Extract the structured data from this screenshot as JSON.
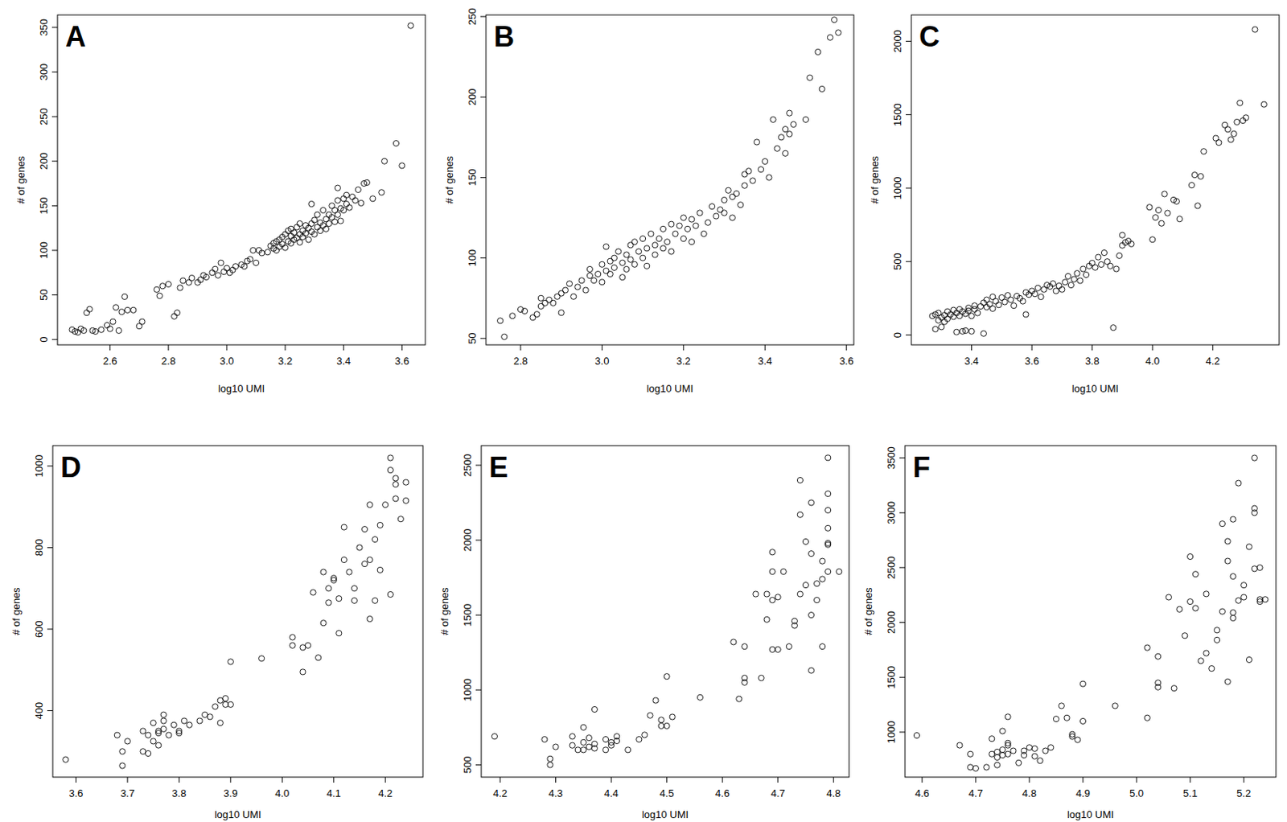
{
  "chart_data": [
    {
      "type": "scatter",
      "title": "A",
      "x_label": "log10 UMI",
      "y_label": "# of genes",
      "marker": "circle",
      "xlim": [
        2.42,
        3.68
      ],
      "ylim": [
        -6,
        364
      ],
      "xticks": [
        2.6,
        2.8,
        3.0,
        3.2,
        3.4,
        3.6
      ],
      "yticks": [
        0,
        50,
        100,
        150,
        200,
        250,
        300,
        350
      ],
      "x": [
        2.47,
        2.48,
        2.49,
        2.5,
        2.51,
        2.52,
        2.53,
        2.54,
        2.55,
        2.57,
        2.59,
        2.6,
        2.61,
        2.62,
        2.63,
        2.64,
        2.65,
        2.66,
        2.68,
        2.7,
        2.71,
        2.76,
        2.77,
        2.78,
        2.8,
        2.82,
        2.83,
        2.84,
        2.85,
        2.87,
        2.88,
        2.9,
        2.91,
        2.92,
        2.93,
        2.95,
        2.96,
        2.97,
        2.98,
        2.99,
        3.0,
        3.01,
        3.02,
        3.03,
        3.05,
        3.06,
        3.07,
        3.08,
        3.09,
        3.1,
        3.11,
        3.12,
        3.14,
        3.15,
        3.16,
        3.16,
        3.17,
        3.17,
        3.18,
        3.18,
        3.19,
        3.19,
        3.2,
        3.2,
        3.21,
        3.21,
        3.22,
        3.22,
        3.22,
        3.23,
        3.23,
        3.24,
        3.24,
        3.25,
        3.25,
        3.25,
        3.26,
        3.26,
        3.27,
        3.27,
        3.28,
        3.28,
        3.29,
        3.29,
        3.3,
        3.3,
        3.31,
        3.31,
        3.32,
        3.32,
        3.33,
        3.33,
        3.34,
        3.34,
        3.35,
        3.35,
        3.36,
        3.36,
        3.37,
        3.37,
        3.38,
        3.38,
        3.39,
        3.39,
        3.4,
        3.4,
        3.41,
        3.41,
        3.42,
        3.43,
        3.44,
        3.45,
        3.46,
        3.47,
        3.48,
        3.5,
        3.53,
        3.54,
        3.58,
        3.6,
        3.63,
        3.29,
        3.38
      ],
      "values": [
        11,
        9,
        8,
        12,
        10,
        30,
        34,
        10,
        9,
        11,
        16,
        12,
        20,
        36,
        10,
        31,
        48,
        33,
        33,
        15,
        20,
        56,
        49,
        60,
        62,
        26,
        30,
        58,
        66,
        64,
        69,
        64,
        67,
        72,
        70,
        75,
        79,
        72,
        86,
        76,
        80,
        75,
        78,
        82,
        84,
        82,
        88,
        90,
        100,
        86,
        100,
        97,
        98,
        105,
        102,
        108,
        100,
        110,
        104,
        112,
        107,
        115,
        103,
        118,
        110,
        122,
        108,
        116,
        124,
        112,
        120,
        114,
        126,
        109,
        118,
        130,
        122,
        115,
        128,
        119,
        125,
        112,
        130,
        121,
        118,
        134,
        126,
        140,
        122,
        131,
        128,
        145,
        135,
        124,
        140,
        130,
        150,
        137,
        132,
        145,
        140,
        156,
        147,
        133,
        158,
        145,
        152,
        162,
        148,
        160,
        156,
        168,
        153,
        175,
        176,
        158,
        165,
        200,
        220,
        195,
        352,
        152,
        170
      ]
    },
    {
      "type": "scatter",
      "title": "B",
      "x_label": "log10 UMI",
      "y_label": "# of genes",
      "marker": "circle",
      "xlim": [
        2.715,
        3.618
      ],
      "ylim": [
        46,
        251
      ],
      "xticks": [
        2.8,
        3.0,
        3.2,
        3.4,
        3.6
      ],
      "yticks": [
        50,
        100,
        150,
        200,
        250
      ],
      "x": [
        2.75,
        2.76,
        2.78,
        2.8,
        2.81,
        2.83,
        2.84,
        2.85,
        2.85,
        2.86,
        2.87,
        2.88,
        2.89,
        2.9,
        2.9,
        2.91,
        2.92,
        2.93,
        2.94,
        2.95,
        2.96,
        2.97,
        2.97,
        2.98,
        2.99,
        3.0,
        3.0,
        3.01,
        3.01,
        3.02,
        3.02,
        3.03,
        3.03,
        3.04,
        3.05,
        3.05,
        3.06,
        3.06,
        3.07,
        3.07,
        3.08,
        3.08,
        3.09,
        3.1,
        3.1,
        3.11,
        3.11,
        3.12,
        3.13,
        3.13,
        3.14,
        3.15,
        3.15,
        3.16,
        3.17,
        3.17,
        3.18,
        3.19,
        3.2,
        3.2,
        3.21,
        3.22,
        3.22,
        3.23,
        3.24,
        3.25,
        3.26,
        3.27,
        3.28,
        3.29,
        3.3,
        3.3,
        3.31,
        3.32,
        3.32,
        3.33,
        3.34,
        3.35,
        3.35,
        3.36,
        3.37,
        3.38,
        3.39,
        3.4,
        3.41,
        3.42,
        3.43,
        3.44,
        3.45,
        3.45,
        3.46,
        3.46,
        3.47,
        3.5,
        3.51,
        3.53,
        3.54,
        3.56,
        3.57,
        3.58
      ],
      "values": [
        61,
        51,
        64,
        68,
        67,
        63,
        65,
        75,
        70,
        72,
        74,
        72,
        76,
        66,
        78,
        80,
        84,
        76,
        82,
        86,
        80,
        89,
        93,
        86,
        90,
        85,
        96,
        92,
        107,
        98,
        90,
        100,
        94,
        104,
        97,
        88,
        102,
        93,
        108,
        99,
        96,
        110,
        104,
        100,
        112,
        106,
        95,
        115,
        108,
        102,
        112,
        106,
        118,
        110,
        104,
        121,
        115,
        120,
        112,
        125,
        118,
        110,
        124,
        120,
        128,
        115,
        122,
        132,
        126,
        130,
        136,
        128,
        142,
        125,
        138,
        140,
        133,
        152,
        145,
        154,
        148,
        172,
        155,
        160,
        150,
        186,
        168,
        175,
        165,
        180,
        177,
        190,
        183,
        186,
        212,
        228,
        205,
        237,
        248,
        240
      ]
    },
    {
      "type": "scatter",
      "title": "C",
      "x_label": "log10 UMI",
      "y_label": "# of genes",
      "marker": "circle",
      "xlim": [
        3.2,
        4.42
      ],
      "ylim": [
        -67,
        2179
      ],
      "xticks": [
        3.4,
        3.6,
        3.8,
        4.0,
        4.2
      ],
      "yticks": [
        0,
        500,
        1000,
        1500,
        2000
      ],
      "x": [
        3.27,
        3.28,
        3.28,
        3.29,
        3.29,
        3.3,
        3.3,
        3.31,
        3.31,
        3.32,
        3.32,
        3.33,
        3.34,
        3.34,
        3.35,
        3.35,
        3.36,
        3.36,
        3.37,
        3.37,
        3.38,
        3.38,
        3.39,
        3.39,
        3.4,
        3.4,
        3.41,
        3.41,
        3.42,
        3.43,
        3.44,
        3.44,
        3.45,
        3.45,
        3.46,
        3.47,
        3.47,
        3.48,
        3.49,
        3.5,
        3.51,
        3.52,
        3.53,
        3.54,
        3.55,
        3.56,
        3.57,
        3.58,
        3.58,
        3.59,
        3.6,
        3.61,
        3.62,
        3.63,
        3.64,
        3.65,
        3.66,
        3.67,
        3.68,
        3.69,
        3.7,
        3.71,
        3.72,
        3.73,
        3.74,
        3.75,
        3.76,
        3.77,
        3.78,
        3.79,
        3.8,
        3.81,
        3.82,
        3.83,
        3.84,
        3.85,
        3.86,
        3.87,
        3.88,
        3.89,
        3.9,
        3.9,
        3.91,
        3.92,
        3.93,
        3.99,
        4.0,
        4.01,
        4.02,
        4.03,
        4.04,
        4.05,
        4.07,
        4.08,
        4.09,
        4.13,
        4.14,
        4.15,
        4.16,
        4.17,
        4.21,
        4.22,
        4.24,
        4.25,
        4.26,
        4.27,
        4.28,
        4.29,
        4.3,
        4.31,
        4.34,
        4.37
      ],
      "values": [
        130,
        40,
        140,
        100,
        150,
        55,
        120,
        135,
        90,
        110,
        160,
        140,
        125,
        170,
        20,
        150,
        130,
        175,
        25,
        160,
        145,
        30,
        185,
        165,
        130,
        25,
        175,
        200,
        150,
        195,
        10,
        220,
        190,
        240,
        210,
        180,
        260,
        230,
        205,
        255,
        225,
        270,
        240,
        200,
        265,
        250,
        230,
        290,
        140,
        275,
        300,
        280,
        320,
        260,
        310,
        340,
        330,
        350,
        300,
        335,
        310,
        360,
        400,
        340,
        380,
        420,
        370,
        450,
        410,
        470,
        490,
        460,
        530,
        480,
        560,
        500,
        470,
        50,
        450,
        540,
        680,
        610,
        630,
        640,
        620,
        870,
        650,
        800,
        850,
        760,
        960,
        830,
        920,
        910,
        790,
        1020,
        1090,
        880,
        1080,
        1250,
        1340,
        1310,
        1430,
        1400,
        1330,
        1370,
        1450,
        1580,
        1460,
        1480,
        2080,
        1570
      ]
    },
    {
      "type": "scatter",
      "title": "D",
      "x_label": "log10 UMI",
      "y_label": "# of genes",
      "marker": "circle",
      "xlim": [
        3.555,
        4.273
      ],
      "ylim": [
        237,
        1050
      ],
      "xticks": [
        3.6,
        3.7,
        3.8,
        3.9,
        4.0,
        4.1,
        4.2
      ],
      "yticks": [
        400,
        600,
        800,
        1000
      ],
      "x": [
        3.58,
        3.68,
        3.69,
        3.69,
        3.7,
        3.73,
        3.73,
        3.74,
        3.74,
        3.75,
        3.75,
        3.76,
        3.76,
        3.76,
        3.77,
        3.77,
        3.77,
        3.78,
        3.79,
        3.8,
        3.8,
        3.81,
        3.82,
        3.84,
        3.85,
        3.86,
        3.87,
        3.88,
        3.88,
        3.89,
        3.89,
        3.9,
        3.9,
        3.96,
        4.02,
        4.02,
        4.04,
        4.04,
        4.05,
        4.06,
        4.07,
        4.08,
        4.08,
        4.09,
        4.09,
        4.1,
        4.1,
        4.11,
        4.11,
        4.12,
        4.12,
        4.13,
        4.14,
        4.14,
        4.15,
        4.16,
        4.16,
        4.17,
        4.17,
        4.17,
        4.18,
        4.18,
        4.19,
        4.19,
        4.2,
        4.21,
        4.21,
        4.21,
        4.22,
        4.22,
        4.22,
        4.23,
        4.24,
        4.24
      ],
      "values": [
        280,
        340,
        265,
        300,
        325,
        350,
        300,
        295,
        340,
        325,
        370,
        350,
        315,
        345,
        355,
        375,
        390,
        340,
        365,
        350,
        345,
        375,
        365,
        375,
        390,
        385,
        410,
        370,
        425,
        415,
        430,
        415,
        520,
        528,
        580,
        560,
        555,
        495,
        560,
        690,
        530,
        615,
        740,
        700,
        665,
        720,
        725,
        675,
        590,
        770,
        850,
        740,
        700,
        670,
        800,
        845,
        760,
        625,
        770,
        905,
        820,
        670,
        745,
        855,
        905,
        685,
        990,
        1020,
        920,
        970,
        955,
        870,
        915,
        960
      ]
    },
    {
      "type": "scatter",
      "title": "E",
      "x_label": "log10 UMI",
      "y_label": "# of genes",
      "marker": "circle",
      "xlim": [
        4.166,
        4.828
      ],
      "ylim": [
        418,
        2631
      ],
      "xticks": [
        4.2,
        4.3,
        4.4,
        4.5,
        4.6,
        4.7,
        4.8
      ],
      "yticks": [
        500,
        1000,
        1500,
        2000,
        2500
      ],
      "x": [
        4.19,
        4.28,
        4.29,
        4.29,
        4.3,
        4.33,
        4.33,
        4.34,
        4.35,
        4.35,
        4.35,
        4.36,
        4.36,
        4.37,
        4.37,
        4.37,
        4.39,
        4.39,
        4.4,
        4.4,
        4.41,
        4.41,
        4.43,
        4.45,
        4.46,
        4.47,
        4.48,
        4.49,
        4.49,
        4.5,
        4.5,
        4.51,
        4.56,
        4.62,
        4.63,
        4.64,
        4.64,
        4.64,
        4.66,
        4.67,
        4.68,
        4.68,
        4.69,
        4.69,
        4.69,
        4.69,
        4.7,
        4.7,
        4.71,
        4.72,
        4.73,
        4.73,
        4.74,
        4.74,
        4.74,
        4.75,
        4.75,
        4.76,
        4.76,
        4.76,
        4.76,
        4.77,
        4.77,
        4.78,
        4.78,
        4.78,
        4.79,
        4.79,
        4.79,
        4.79,
        4.79,
        4.79,
        4.79,
        4.81
      ],
      "values": [
        690,
        670,
        540,
        500,
        620,
        690,
        630,
        600,
        650,
        750,
        600,
        620,
        680,
        610,
        870,
        640,
        600,
        670,
        630,
        650,
        690,
        660,
        600,
        670,
        700,
        830,
        930,
        760,
        800,
        760,
        1090,
        820,
        950,
        1320,
        940,
        1050,
        1080,
        1290,
        1640,
        1080,
        1640,
        1470,
        1270,
        1600,
        1920,
        1790,
        1270,
        1620,
        1790,
        1290,
        1430,
        1460,
        2400,
        1640,
        2170,
        1990,
        1700,
        1130,
        1910,
        1500,
        2250,
        1600,
        1710,
        1860,
        1740,
        1290,
        2080,
        1980,
        2550,
        1970,
        2310,
        2200,
        1790,
        1790
      ]
    },
    {
      "type": "scatter",
      "title": "F",
      "x_label": "log10 UMI",
      "y_label": "# of genes",
      "marker": "circle",
      "xlim": [
        4.568,
        5.26
      ],
      "ylim": [
        590,
        3612
      ],
      "xticks": [
        4.6,
        4.7,
        4.8,
        4.9,
        5.0,
        5.1,
        5.2
      ],
      "yticks": [
        1000,
        1500,
        2000,
        2500,
        3000,
        3500
      ],
      "x": [
        4.59,
        4.67,
        4.69,
        4.69,
        4.7,
        4.72,
        4.73,
        4.73,
        4.74,
        4.74,
        4.74,
        4.75,
        4.75,
        4.75,
        4.76,
        4.76,
        4.76,
        4.76,
        4.77,
        4.78,
        4.79,
        4.79,
        4.8,
        4.81,
        4.81,
        4.82,
        4.83,
        4.84,
        4.85,
        4.86,
        4.87,
        4.88,
        4.88,
        4.89,
        4.9,
        4.9,
        4.96,
        5.02,
        5.02,
        5.04,
        5.04,
        5.04,
        5.06,
        5.07,
        5.08,
        5.09,
        5.1,
        5.1,
        5.11,
        5.11,
        5.12,
        5.13,
        5.13,
        5.14,
        5.15,
        5.15,
        5.16,
        5.16,
        5.17,
        5.17,
        5.17,
        5.18,
        5.18,
        5.18,
        5.18,
        5.19,
        5.19,
        5.2,
        5.2,
        5.21,
        5.21,
        5.22,
        5.22,
        5.22,
        5.22,
        5.23,
        5.23,
        5.23,
        5.24
      ],
      "values": [
        970,
        880,
        800,
        680,
        670,
        680,
        940,
        800,
        770,
        700,
        820,
        790,
        840,
        1010,
        800,
        880,
        900,
        1140,
        830,
        720,
        790,
        830,
        860,
        780,
        850,
        740,
        830,
        860,
        1120,
        1240,
        1130,
        960,
        980,
        930,
        1440,
        1100,
        1240,
        1770,
        1130,
        1690,
        1410,
        1450,
        2230,
        1400,
        2120,
        1880,
        2600,
        2190,
        2440,
        2130,
        1650,
        1720,
        2260,
        1580,
        1840,
        1930,
        2100,
        2900,
        2740,
        1460,
        2560,
        2040,
        2420,
        2940,
        2090,
        3270,
        2200,
        2230,
        2340,
        2690,
        1660,
        2490,
        3500,
        3000,
        3040,
        2190,
        2500,
        2210,
        2210
      ]
    }
  ]
}
